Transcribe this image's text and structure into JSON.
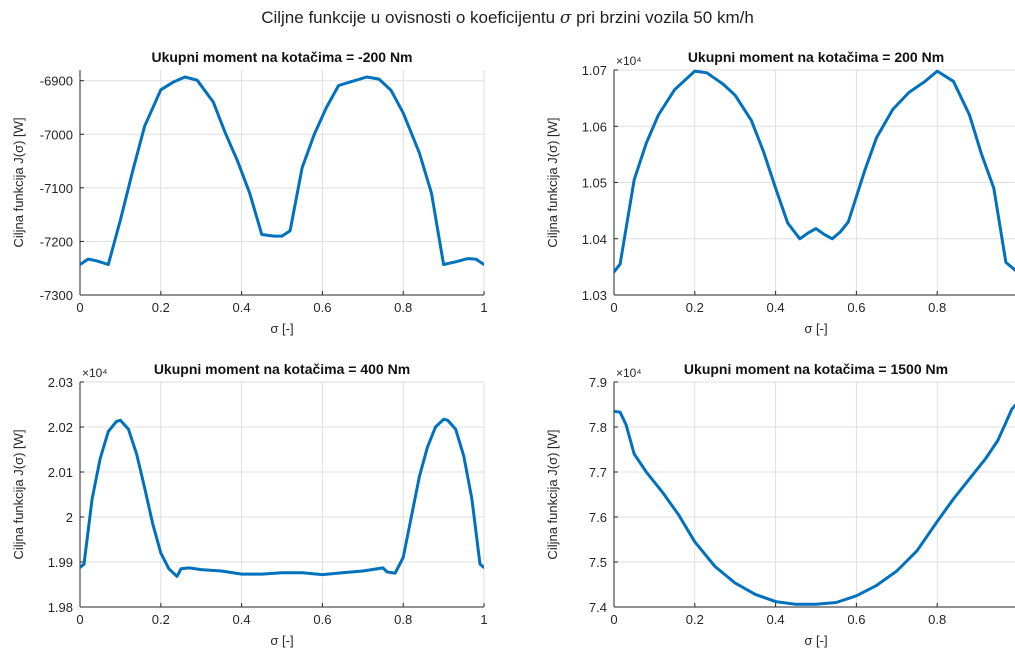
{
  "figure": {
    "title_prefix": "Ciljne funkcije u ovisnosti o koeficijentu",
    "title_symbol": "σ",
    "title_suffix": "pri brzini vozila 50 km/h"
  },
  "colors": {
    "line": "#0072bd",
    "grid": "#dfdfdf",
    "axis": "#262626",
    "background": "#ffffff"
  },
  "chart_data": [
    {
      "type": "line",
      "title": "Ukupni moment na kotačima = -200 Nm",
      "xlabel": "σ [-]",
      "ylabel": "Ciljna funkcija J(σ) [W]",
      "xlim": [
        0,
        1
      ],
      "ylim": [
        -7300,
        -6880
      ],
      "x_ticks": [
        0,
        0.2,
        0.4,
        0.6,
        0.8,
        1
      ],
      "x_tick_labels": [
        "0",
        "0.2",
        "0.4",
        "0.6",
        "0.8",
        "1"
      ],
      "y_ticks": [
        -7300,
        -7200,
        -7100,
        -7000,
        -6900
      ],
      "y_tick_labels": [
        "-7300",
        "-7200",
        "-7100",
        "-7000",
        "-6900"
      ],
      "exponent_label": "",
      "grid": true,
      "series": [
        {
          "x": [
            0,
            0.02,
            0.04,
            0.07,
            0.1,
            0.13,
            0.16,
            0.2,
            0.23,
            0.26,
            0.29,
            0.33,
            0.36,
            0.39,
            0.42,
            0.45,
            0.48,
            0.5,
            0.52,
            0.55,
            0.58,
            0.61,
            0.64,
            0.67,
            0.71,
            0.74,
            0.77,
            0.8,
            0.84,
            0.87,
            0.9,
            0.93,
            0.96,
            0.98,
            1
          ],
          "y": [
            -7243,
            -7233,
            -7236,
            -7243,
            -7160,
            -7070,
            -6985,
            -6917,
            -6903,
            -6893,
            -6899,
            -6940,
            -6998,
            -7050,
            -7110,
            -7187,
            -7190,
            -7190,
            -7180,
            -7062,
            -7000,
            -6950,
            -6909,
            -6902,
            -6893,
            -6897,
            -6918,
            -6960,
            -7035,
            -7110,
            -7243,
            -7238,
            -7232,
            -7233,
            -7243
          ]
        }
      ]
    },
    {
      "type": "line",
      "title": "Ukupni moment na kotačima = 200 Nm",
      "xlabel": "σ [-]",
      "ylabel": "Ciljna funkcija J(σ) [W]",
      "xlim": [
        0,
        1
      ],
      "ylim": [
        1.03,
        1.07
      ],
      "x_ticks": [
        0,
        0.2,
        0.4,
        0.6,
        0.8
      ],
      "x_tick_labels": [
        "0",
        "0.2",
        "0.4",
        "0.6",
        "0.8"
      ],
      "y_ticks": [
        1.03,
        1.04,
        1.05,
        1.06,
        1.07
      ],
      "y_tick_labels": [
        "1.03",
        "1.04",
        "1.05",
        "1.06",
        "1.07"
      ],
      "exponent_label": "×10⁴",
      "grid": true,
      "series": [
        {
          "x": [
            0,
            0.015,
            0.05,
            0.08,
            0.11,
            0.15,
            0.2,
            0.23,
            0.27,
            0.3,
            0.34,
            0.37,
            0.4,
            0.43,
            0.46,
            0.48,
            0.5,
            0.52,
            0.54,
            0.56,
            0.58,
            0.62,
            0.65,
            0.69,
            0.73,
            0.77,
            0.8,
            0.84,
            0.88,
            0.91,
            0.94,
            0.97,
            1
          ],
          "y": [
            1.0341,
            1.0355,
            1.0505,
            1.057,
            1.062,
            1.0665,
            1.0698,
            1.0695,
            1.0675,
            1.0655,
            1.061,
            1.0555,
            1.049,
            1.0428,
            1.04,
            1.041,
            1.0418,
            1.0408,
            1.04,
            1.0412,
            1.043,
            1.052,
            1.058,
            1.063,
            1.066,
            1.068,
            1.0698,
            1.068,
            1.062,
            1.055,
            1.049,
            1.0358,
            1.034
          ]
        }
      ]
    },
    {
      "type": "line",
      "title": "Ukupni moment na kotačima = 400 Nm",
      "xlabel": "σ [-]",
      "ylabel": "Ciljna funkcija J(σ) [W]",
      "xlim": [
        0,
        1
      ],
      "ylim": [
        1.98,
        2.03
      ],
      "x_ticks": [
        0,
        0.2,
        0.4,
        0.6,
        0.8,
        1
      ],
      "x_tick_labels": [
        "0",
        "0.2",
        "0.4",
        "0.6",
        "0.8",
        "1"
      ],
      "y_ticks": [
        1.98,
        1.99,
        2,
        2.01,
        2.02,
        2.03
      ],
      "y_tick_labels": [
        "1.98",
        "1.99",
        "2",
        "2.01",
        "2.02",
        "2.03"
      ],
      "exponent_label": "×10⁴",
      "grid": true,
      "series": [
        {
          "x": [
            0,
            0.01,
            0.03,
            0.05,
            0.07,
            0.09,
            0.1,
            0.12,
            0.14,
            0.16,
            0.18,
            0.2,
            0.22,
            0.24,
            0.25,
            0.27,
            0.3,
            0.35,
            0.4,
            0.45,
            0.5,
            0.55,
            0.6,
            0.65,
            0.7,
            0.75,
            0.76,
            0.78,
            0.8,
            0.82,
            0.84,
            0.86,
            0.88,
            0.9,
            0.91,
            0.93,
            0.95,
            0.97,
            0.99,
            1
          ],
          "y": [
            1.9888,
            1.9895,
            2.004,
            2.013,
            2.019,
            2.0212,
            2.0215,
            2.0195,
            2.014,
            2.0065,
            1.9985,
            1.992,
            1.9885,
            1.9868,
            1.9885,
            1.9887,
            1.9883,
            1.988,
            1.9873,
            1.9873,
            1.9876,
            1.9876,
            1.9872,
            1.9876,
            1.988,
            1.9887,
            1.9878,
            1.9875,
            1.991,
            2.0,
            2.009,
            2.0155,
            2.02,
            2.0217,
            2.0215,
            2.0195,
            2.0135,
            2.004,
            1.9895,
            1.9888
          ]
        }
      ]
    },
    {
      "type": "line",
      "title": "Ukupni moment na kotačima = 1500 Nm",
      "xlabel": "σ [-]",
      "ylabel": "Ciljna funkcija J(σ) [W]",
      "xlim": [
        0,
        1
      ],
      "ylim": [
        7.4,
        7.9
      ],
      "x_ticks": [
        0,
        0.2,
        0.4,
        0.6,
        0.8
      ],
      "x_tick_labels": [
        "0",
        "0.2",
        "0.4",
        "0.6",
        "0.8"
      ],
      "y_ticks": [
        7.4,
        7.5,
        7.6,
        7.7,
        7.8,
        7.9
      ],
      "y_tick_labels": [
        "7.4",
        "7.5",
        "7.6",
        "7.7",
        "7.8",
        "7.9"
      ],
      "exponent_label": "×10⁴",
      "grid": true,
      "series": [
        {
          "x": [
            0,
            0.015,
            0.03,
            0.05,
            0.08,
            0.12,
            0.16,
            0.2,
            0.25,
            0.3,
            0.35,
            0.4,
            0.45,
            0.5,
            0.55,
            0.6,
            0.65,
            0.7,
            0.75,
            0.8,
            0.84,
            0.88,
            0.92,
            0.95,
            0.97,
            0.985,
            1
          ],
          "y": [
            7.835,
            7.833,
            7.805,
            7.74,
            7.7,
            7.655,
            7.605,
            7.545,
            7.49,
            7.453,
            7.428,
            7.412,
            7.406,
            7.406,
            7.41,
            7.425,
            7.448,
            7.48,
            7.525,
            7.59,
            7.64,
            7.685,
            7.73,
            7.77,
            7.81,
            7.84,
            7.855
          ]
        }
      ]
    }
  ]
}
